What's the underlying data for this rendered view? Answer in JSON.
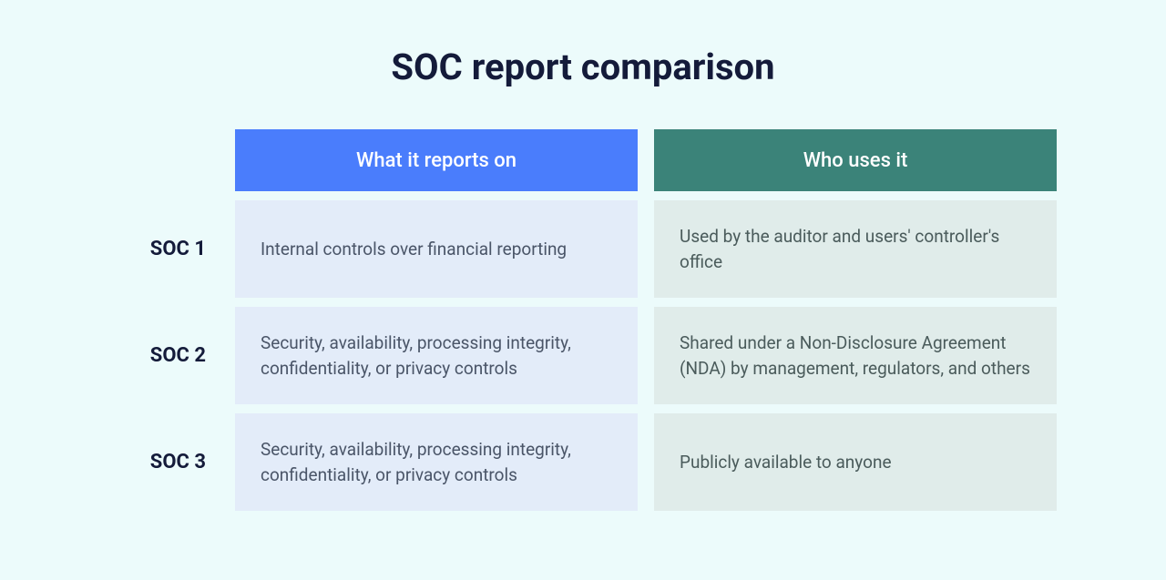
{
  "title": "SOC report comparison",
  "colors": {
    "page_bg": "#ecfbfb",
    "title_color": "#141b3a",
    "row_label_color": "#141b3a",
    "header_reports_bg": "#4a7dfc",
    "header_uses_bg": "#3b8379",
    "body_reports_bg": "#e3ecf9",
    "body_reports_text": "#4a5568",
    "body_uses_bg": "#e0ecea",
    "body_uses_text": "#4a5b5b"
  },
  "typography": {
    "title_fontsize": 40,
    "title_weight": 700,
    "header_fontsize": 22,
    "header_weight": 500,
    "row_label_fontsize": 22,
    "row_label_weight": 700,
    "body_fontsize": 19
  },
  "layout": {
    "col_gap": 18,
    "row_gap": 10,
    "label_col_width": 120,
    "header_row_height": 68,
    "cell_padding_v": 26,
    "cell_padding_h": 28
  },
  "table": {
    "type": "table",
    "columns": [
      {
        "key": "reports",
        "label": "What it reports on"
      },
      {
        "key": "uses",
        "label": "Who uses it"
      }
    ],
    "rows": [
      {
        "label": "SOC 1",
        "reports": "Internal controls over financial reporting",
        "uses": "Used by the auditor and users' controller's office"
      },
      {
        "label": "SOC 2",
        "reports": "Security, availability, processing integrity, confidentiality, or privacy controls",
        "uses": "Shared under a Non-Disclosure Agreement (NDA) by management, regulators, and others"
      },
      {
        "label": "SOC 3",
        "reports": "Security, availability, processing integrity, confidentiality, or privacy controls",
        "uses": "Publicly available to anyone"
      }
    ]
  }
}
